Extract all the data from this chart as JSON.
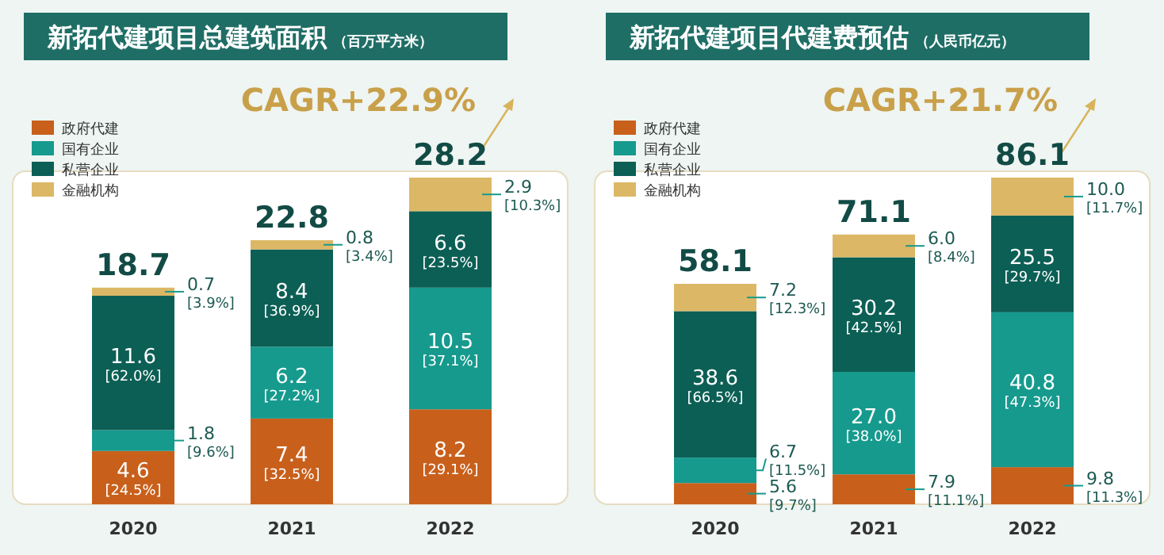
{
  "chart_data": [
    {
      "type": "bar",
      "title": "新拓代建项目总建筑面积",
      "subtitle": "（百万平方米）",
      "stacked": true,
      "legend": "top left",
      "categories": [
        "2020",
        "2021",
        "2022"
      ],
      "series": [
        {
          "name": "政府代建",
          "color": "#c8601c",
          "values": [
            4.6,
            7.4,
            8.2
          ],
          "value_labels": [
            "4.6 [24.5%]",
            "7.4 [32.5%]",
            "8.2 [29.1%]"
          ]
        },
        {
          "name": "国有企业",
          "color": "#169a8e",
          "values": [
            1.8,
            6.2,
            10.5
          ],
          "value_labels": [
            "1.8 [9.6%]",
            "6.2 [27.2%]",
            "10.5 [37.1%]"
          ]
        },
        {
          "name": "私营企业",
          "color": "#0c5f55",
          "values": [
            11.6,
            8.4,
            6.6
          ],
          "value_labels": [
            "11.6 [62.0%]",
            "8.4 [36.9%]",
            "6.6 [23.5%]"
          ]
        },
        {
          "name": "金融机构",
          "color": "#dcb866",
          "values": [
            0.7,
            0.8,
            2.9
          ],
          "value_labels": [
            "0.7 [3.9%]",
            "0.8 [3.4%]",
            "2.9 [10.3%]"
          ]
        }
      ],
      "totals": [
        "18.7",
        "22.8",
        "28.2"
      ],
      "annotations": [
        "CAGR+22.9%"
      ]
    },
    {
      "type": "bar",
      "title": "新拓代建项目代建费预估",
      "subtitle": "（人民币亿元）",
      "stacked": true,
      "legend": "top left",
      "categories": [
        "2020",
        "2021",
        "2022"
      ],
      "series": [
        {
          "name": "政府代建",
          "color": "#c8601c",
          "values": [
            5.6,
            7.9,
            9.8
          ],
          "value_labels": [
            "5.6 [9.7%]",
            "7.9 [11.1%]",
            "9.8 [11.3%]"
          ]
        },
        {
          "name": "国有企业",
          "color": "#169a8e",
          "values": [
            6.7,
            27.0,
            40.8
          ],
          "value_labels": [
            "6.7 [11.5%]",
            "27.0 [38.0%]",
            "40.8 [47.3%]"
          ]
        },
        {
          "name": "私营企业",
          "color": "#0c5f55",
          "values": [
            38.6,
            30.2,
            25.5
          ],
          "value_labels": [
            "38.6 [66.5%]",
            "30.2 [42.5%]",
            "25.5 [29.7%]"
          ]
        },
        {
          "name": "金融机构",
          "color": "#dcb866",
          "values": [
            7.2,
            6.0,
            10.0
          ],
          "value_labels": [
            "7.2 [12.3%]",
            "6.0 [8.4%]",
            "10.0 [11.7%]"
          ]
        }
      ],
      "totals": [
        "58.1",
        "71.1",
        "86.1"
      ],
      "annotations": [
        "CAGR+21.7%"
      ]
    }
  ]
}
